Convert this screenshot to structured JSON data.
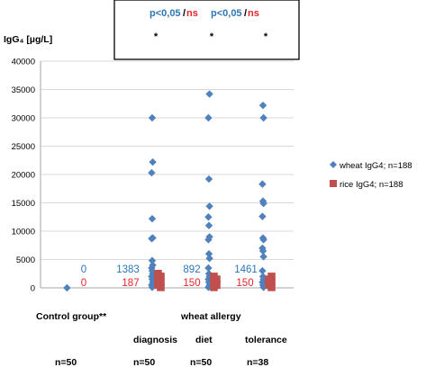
{
  "chart_data": {
    "type": "scatter",
    "ylabel": "IgG₄ [µg/L]",
    "ylim": [
      0,
      40000
    ],
    "yticks": [
      "0",
      "5000",
      "10000",
      "15000",
      "20000",
      "25000",
      "30000",
      "35000",
      "40000"
    ],
    "grid": true,
    "legend_position": "right",
    "colors": {
      "wheat": "#4F81BD",
      "rice": "#C0504D",
      "value_wheat": "#2E75B6",
      "value_rice": "#E8242A"
    },
    "groups": [
      {
        "name": "Control group**",
        "wheat_value": "0",
        "rice_value": "0",
        "n": "n=50"
      },
      {
        "name": "diagnosis",
        "wheat_value": "1383",
        "rice_value": "187",
        "n": "n=50"
      },
      {
        "name": "diet",
        "wheat_value": "892",
        "rice_value": "150",
        "n": "n=50"
      },
      {
        "name": "tolerance",
        "wheat_value": "1461",
        "rice_value": "150",
        "n": "n=38"
      }
    ],
    "category_header": "wheat allergy",
    "series": [
      {
        "name": "wheat IgG4; n=188",
        "marker": "diamond",
        "points": [
          {
            "x": 0,
            "y": 0
          },
          {
            "x": 1,
            "y": 30000
          },
          {
            "x": 1,
            "y": 22200
          },
          {
            "x": 1,
            "y": 20300
          },
          {
            "x": 1,
            "y": 12200
          },
          {
            "x": 1,
            "y": 8800
          },
          {
            "x": 1,
            "y": 8700
          },
          {
            "x": 1,
            "y": 4800
          },
          {
            "x": 1,
            "y": 4000
          },
          {
            "x": 1,
            "y": 3500
          },
          {
            "x": 1,
            "y": 3000
          },
          {
            "x": 1,
            "y": 2500
          },
          {
            "x": 1,
            "y": 2000
          },
          {
            "x": 1,
            "y": 1500
          },
          {
            "x": 1,
            "y": 1000
          },
          {
            "x": 1,
            "y": 500
          },
          {
            "x": 1,
            "y": 100
          },
          {
            "x": 2,
            "y": 34200
          },
          {
            "x": 2,
            "y": 30000
          },
          {
            "x": 2,
            "y": 19200
          },
          {
            "x": 2,
            "y": 14400
          },
          {
            "x": 2,
            "y": 12500
          },
          {
            "x": 2,
            "y": 11000
          },
          {
            "x": 2,
            "y": 9000
          },
          {
            "x": 2,
            "y": 8500
          },
          {
            "x": 2,
            "y": 6000
          },
          {
            "x": 2,
            "y": 5200
          },
          {
            "x": 2,
            "y": 3500
          },
          {
            "x": 2,
            "y": 2500
          },
          {
            "x": 2,
            "y": 2000
          },
          {
            "x": 2,
            "y": 1500
          },
          {
            "x": 2,
            "y": 1000
          },
          {
            "x": 2,
            "y": 500
          },
          {
            "x": 2,
            "y": 100
          },
          {
            "x": 3,
            "y": 32200
          },
          {
            "x": 3,
            "y": 30000
          },
          {
            "x": 3,
            "y": 18300
          },
          {
            "x": 3,
            "y": 15300
          },
          {
            "x": 3,
            "y": 14900
          },
          {
            "x": 3,
            "y": 12600
          },
          {
            "x": 3,
            "y": 8800
          },
          {
            "x": 3,
            "y": 8500
          },
          {
            "x": 3,
            "y": 7000
          },
          {
            "x": 3,
            "y": 6500
          },
          {
            "x": 3,
            "y": 5500
          },
          {
            "x": 3,
            "y": 3000
          },
          {
            "x": 3,
            "y": 2000
          },
          {
            "x": 3,
            "y": 1500
          },
          {
            "x": 3,
            "y": 1000
          },
          {
            "x": 3,
            "y": 500
          },
          {
            "x": 3,
            "y": 100
          }
        ]
      },
      {
        "name": "rice IgG4; n=188",
        "marker": "square",
        "points": [
          {
            "x": 1,
            "y": 2500
          },
          {
            "x": 1,
            "y": 2000
          },
          {
            "x": 1,
            "y": 1500
          },
          {
            "x": 1,
            "y": 1000
          },
          {
            "x": 1,
            "y": 500
          },
          {
            "x": 1,
            "y": 100
          },
          {
            "x": 2,
            "y": 2000
          },
          {
            "x": 2,
            "y": 1500
          },
          {
            "x": 2,
            "y": 1000
          },
          {
            "x": 2,
            "y": 500
          },
          {
            "x": 2,
            "y": 100
          },
          {
            "x": 3,
            "y": 2000
          },
          {
            "x": 3,
            "y": 1500
          },
          {
            "x": 3,
            "y": 1000
          },
          {
            "x": 3,
            "y": 500
          },
          {
            "x": 3,
            "y": 100
          }
        ]
      }
    ],
    "annotations": {
      "comparisons": [
        {
          "sig": "p<0,05",
          "sep": "/",
          "ns": "ns",
          "star": "*"
        },
        {
          "sig": "p<0,05",
          "sep": "/",
          "ns": "ns",
          "star": "*"
        },
        {
          "sig": "",
          "sep": "",
          "ns": "",
          "star": "*"
        }
      ]
    }
  }
}
